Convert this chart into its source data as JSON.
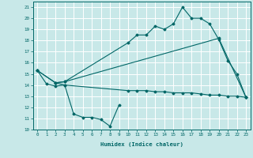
{
  "title": "",
  "xlabel": "Humidex (Indice chaleur)",
  "xlim": [
    -0.5,
    23.5
  ],
  "ylim": [
    10,
    21.5
  ],
  "yticks": [
    10,
    11,
    12,
    13,
    14,
    15,
    16,
    17,
    18,
    19,
    20,
    21
  ],
  "xticks": [
    0,
    1,
    2,
    3,
    4,
    5,
    6,
    7,
    8,
    9,
    10,
    11,
    12,
    13,
    14,
    15,
    16,
    17,
    18,
    19,
    20,
    21,
    22,
    23
  ],
  "bg_color": "#c8e8e8",
  "line_color": "#006666",
  "grid_color": "#ffffff",
  "lines": [
    {
      "x": [
        0,
        1,
        2,
        3,
        4,
        5,
        6,
        7,
        8,
        9
      ],
      "y": [
        15.3,
        14.1,
        13.9,
        14.0,
        11.4,
        11.1,
        11.1,
        10.9,
        10.3,
        12.2
      ]
    },
    {
      "x": [
        0,
        2,
        3,
        10,
        11,
        12,
        13,
        14,
        15,
        16,
        17,
        18,
        19,
        20,
        21,
        22,
        23
      ],
      "y": [
        15.3,
        14.2,
        14.3,
        17.8,
        18.5,
        18.5,
        19.3,
        19.0,
        19.5,
        21.0,
        20.0,
        20.0,
        19.5,
        18.1,
        16.2,
        15.0,
        12.9
      ]
    },
    {
      "x": [
        0,
        2,
        3,
        20,
        23
      ],
      "y": [
        15.3,
        14.2,
        14.3,
        18.2,
        12.9
      ]
    },
    {
      "x": [
        2,
        3,
        10,
        11,
        12,
        13,
        14,
        15,
        16,
        17,
        18,
        19,
        20,
        21,
        22,
        23
      ],
      "y": [
        14.2,
        14.0,
        13.5,
        13.5,
        13.5,
        13.4,
        13.4,
        13.3,
        13.3,
        13.3,
        13.2,
        13.1,
        13.1,
        13.0,
        13.0,
        12.9
      ]
    }
  ]
}
